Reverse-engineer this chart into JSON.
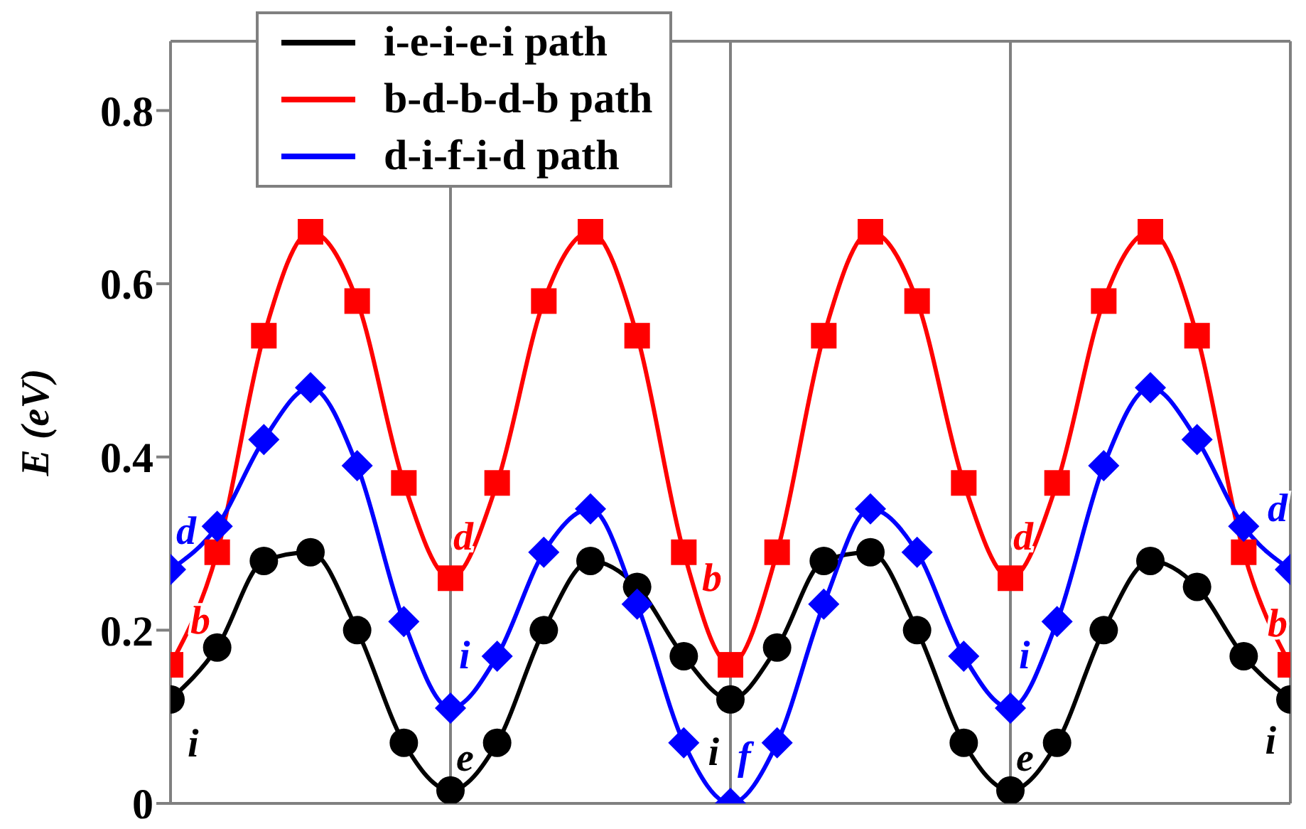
{
  "chart_data": {
    "type": "line",
    "ylabel": "E (eV)",
    "categories": [
      null,
      null,
      null,
      null,
      null,
      null,
      null,
      null,
      null,
      null,
      null,
      null,
      null,
      null,
      null,
      null,
      null,
      null,
      null,
      null,
      null,
      null,
      null,
      null,
      null
    ],
    "ylim": [
      0,
      0.88
    ],
    "yticks": [
      0,
      0.2,
      0.4,
      0.6,
      0.8
    ],
    "tick_labels": "y",
    "legend": "top",
    "grid": "x",
    "series": [
      {
        "name": "i-e-i-e-i path",
        "color": "#000000",
        "marker": "circle",
        "values": [
          0.12,
          0.18,
          0.28,
          0.29,
          0.2,
          0.07,
          0.015,
          0.07,
          0.2,
          0.28,
          0.25,
          0.17,
          0.12,
          0.18,
          0.28,
          0.29,
          0.2,
          0.07,
          0.015,
          0.07,
          0.2,
          0.28,
          0.25,
          0.17,
          0.12
        ]
      },
      {
        "name": "b-d-b-d-b path",
        "color": "#ff0000",
        "marker": "square",
        "values": [
          0.16,
          0.29,
          0.54,
          0.66,
          0.58,
          0.37,
          0.26,
          0.37,
          0.58,
          0.66,
          0.54,
          0.29,
          0.16,
          0.29,
          0.54,
          0.66,
          0.58,
          0.37,
          0.26,
          0.37,
          0.58,
          0.66,
          0.54,
          0.29,
          0.16
        ]
      },
      {
        "name": "d-i-f-i-d path",
        "color": "#0000ff",
        "marker": "diamond",
        "values": [
          0.27,
          0.32,
          0.42,
          0.48,
          0.39,
          0.21,
          0.11,
          0.17,
          0.29,
          0.34,
          0.23,
          0.07,
          0,
          0.07,
          0.23,
          0.34,
          0.29,
          0.17,
          0.11,
          0.21,
          0.39,
          0.48,
          0.42,
          0.32,
          0.27
        ]
      }
    ],
    "annotations": [
      "i",
      "b",
      "d",
      "e",
      "d",
      "i",
      "i",
      "b",
      "f",
      "e",
      "d",
      "i",
      "i",
      "b",
      "d"
    ]
  }
}
